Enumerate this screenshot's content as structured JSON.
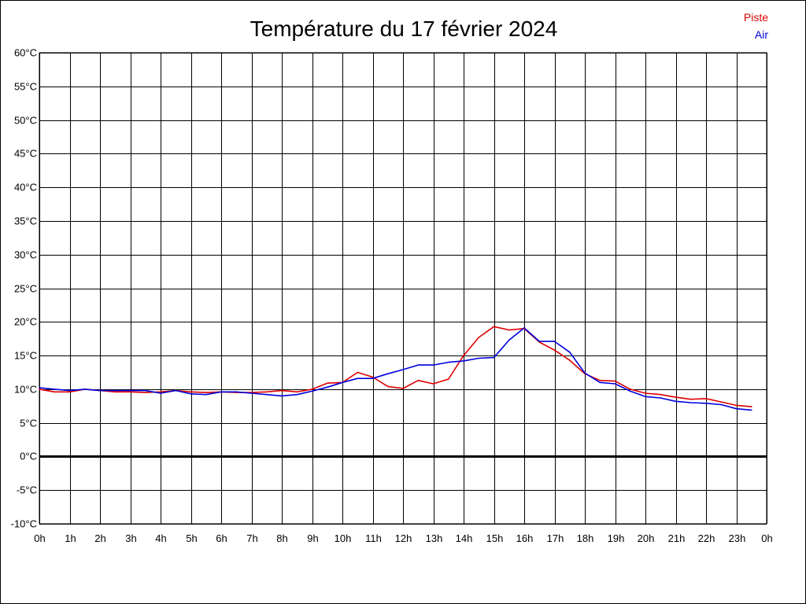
{
  "chart_data": {
    "type": "line",
    "title": "Température du 17 février 2024",
    "xlabel": "",
    "ylabel": "",
    "ylim": [
      -10,
      60
    ],
    "xlim": [
      0,
      24
    ],
    "grid": true,
    "legend_position": "top-right",
    "colors": {
      "zero_line": "#000000",
      "grid": "#000000"
    },
    "y_ticks": [
      {
        "value": 60,
        "label": "60°C"
      },
      {
        "value": 55,
        "label": "55°C"
      },
      {
        "value": 50,
        "label": "50°C"
      },
      {
        "value": 45,
        "label": "45°C"
      },
      {
        "value": 40,
        "label": "40°C"
      },
      {
        "value": 35,
        "label": "35°C"
      },
      {
        "value": 30,
        "label": "30°C"
      },
      {
        "value": 25,
        "label": "25°C"
      },
      {
        "value": 20,
        "label": "20°C"
      },
      {
        "value": 15,
        "label": "15°C"
      },
      {
        "value": 10,
        "label": "10°C"
      },
      {
        "value": 5,
        "label": "5°C"
      },
      {
        "value": 0,
        "label": "0°C"
      },
      {
        "value": -5,
        "label": "-5°C"
      },
      {
        "value": -10,
        "label": "-10°C"
      }
    ],
    "x_ticks": [
      {
        "value": 0,
        "label": "0h"
      },
      {
        "value": 1,
        "label": "1h"
      },
      {
        "value": 2,
        "label": "2h"
      },
      {
        "value": 3,
        "label": "3h"
      },
      {
        "value": 4,
        "label": "4h"
      },
      {
        "value": 5,
        "label": "5h"
      },
      {
        "value": 6,
        "label": "6h"
      },
      {
        "value": 7,
        "label": "7h"
      },
      {
        "value": 8,
        "label": "8h"
      },
      {
        "value": 9,
        "label": "9h"
      },
      {
        "value": 10,
        "label": "10h"
      },
      {
        "value": 11,
        "label": "11h"
      },
      {
        "value": 12,
        "label": "12h"
      },
      {
        "value": 13,
        "label": "13h"
      },
      {
        "value": 14,
        "label": "14h"
      },
      {
        "value": 15,
        "label": "15h"
      },
      {
        "value": 16,
        "label": "16h"
      },
      {
        "value": 17,
        "label": "17h"
      },
      {
        "value": 18,
        "label": "18h"
      },
      {
        "value": 19,
        "label": "19h"
      },
      {
        "value": 20,
        "label": "20h"
      },
      {
        "value": 21,
        "label": "21h"
      },
      {
        "value": 22,
        "label": "22h"
      },
      {
        "value": 23,
        "label": "23h"
      },
      {
        "value": 24,
        "label": "0h"
      }
    ],
    "x": [
      0,
      0.5,
      1,
      1.5,
      2,
      2.5,
      3,
      3.5,
      4,
      4.5,
      5,
      5.5,
      6,
      6.5,
      7,
      7.5,
      8,
      8.5,
      9,
      9.5,
      10,
      10.5,
      11,
      11.5,
      12,
      12.5,
      13,
      13.5,
      14,
      14.5,
      15,
      15.5,
      16,
      16.5,
      17,
      17.5,
      18,
      18.5,
      19,
      19.5,
      20,
      20.5,
      21,
      21.5,
      22,
      22.5,
      23,
      23.5
    ],
    "series": [
      {
        "name": "Piste",
        "color": "#dd0000",
        "values": [
          10.0,
          9.6,
          9.6,
          10.0,
          9.8,
          9.6,
          9.6,
          9.5,
          9.6,
          9.8,
          9.6,
          9.5,
          9.6,
          9.5,
          9.5,
          9.6,
          9.8,
          9.6,
          10.0,
          10.9,
          11.0,
          12.5,
          11.8,
          10.4,
          10.1,
          11.3,
          10.8,
          11.5,
          15.0,
          17.7,
          19.3,
          18.8,
          19.0,
          17.0,
          15.8,
          14.3,
          12.3,
          11.3,
          11.2,
          10.0,
          9.4,
          9.2,
          8.8,
          8.5,
          8.6,
          8.1,
          7.6,
          7.4
        ]
      },
      {
        "name": "Air",
        "color": "#0000dd",
        "values": [
          10.2,
          10.0,
          9.8,
          10.0,
          9.8,
          9.8,
          9.8,
          9.8,
          9.4,
          9.8,
          9.3,
          9.2,
          9.6,
          9.6,
          9.4,
          9.2,
          9.0,
          9.2,
          9.7,
          10.3,
          11.0,
          11.6,
          11.6,
          12.3,
          12.9,
          13.6,
          13.6,
          14.0,
          14.2,
          14.6,
          14.7,
          17.3,
          19.1,
          17.1,
          17.1,
          15.5,
          12.4,
          11.0,
          10.8,
          9.7,
          8.9,
          8.7,
          8.2,
          8.0,
          7.9,
          7.7,
          7.1,
          6.9
        ]
      }
    ]
  }
}
